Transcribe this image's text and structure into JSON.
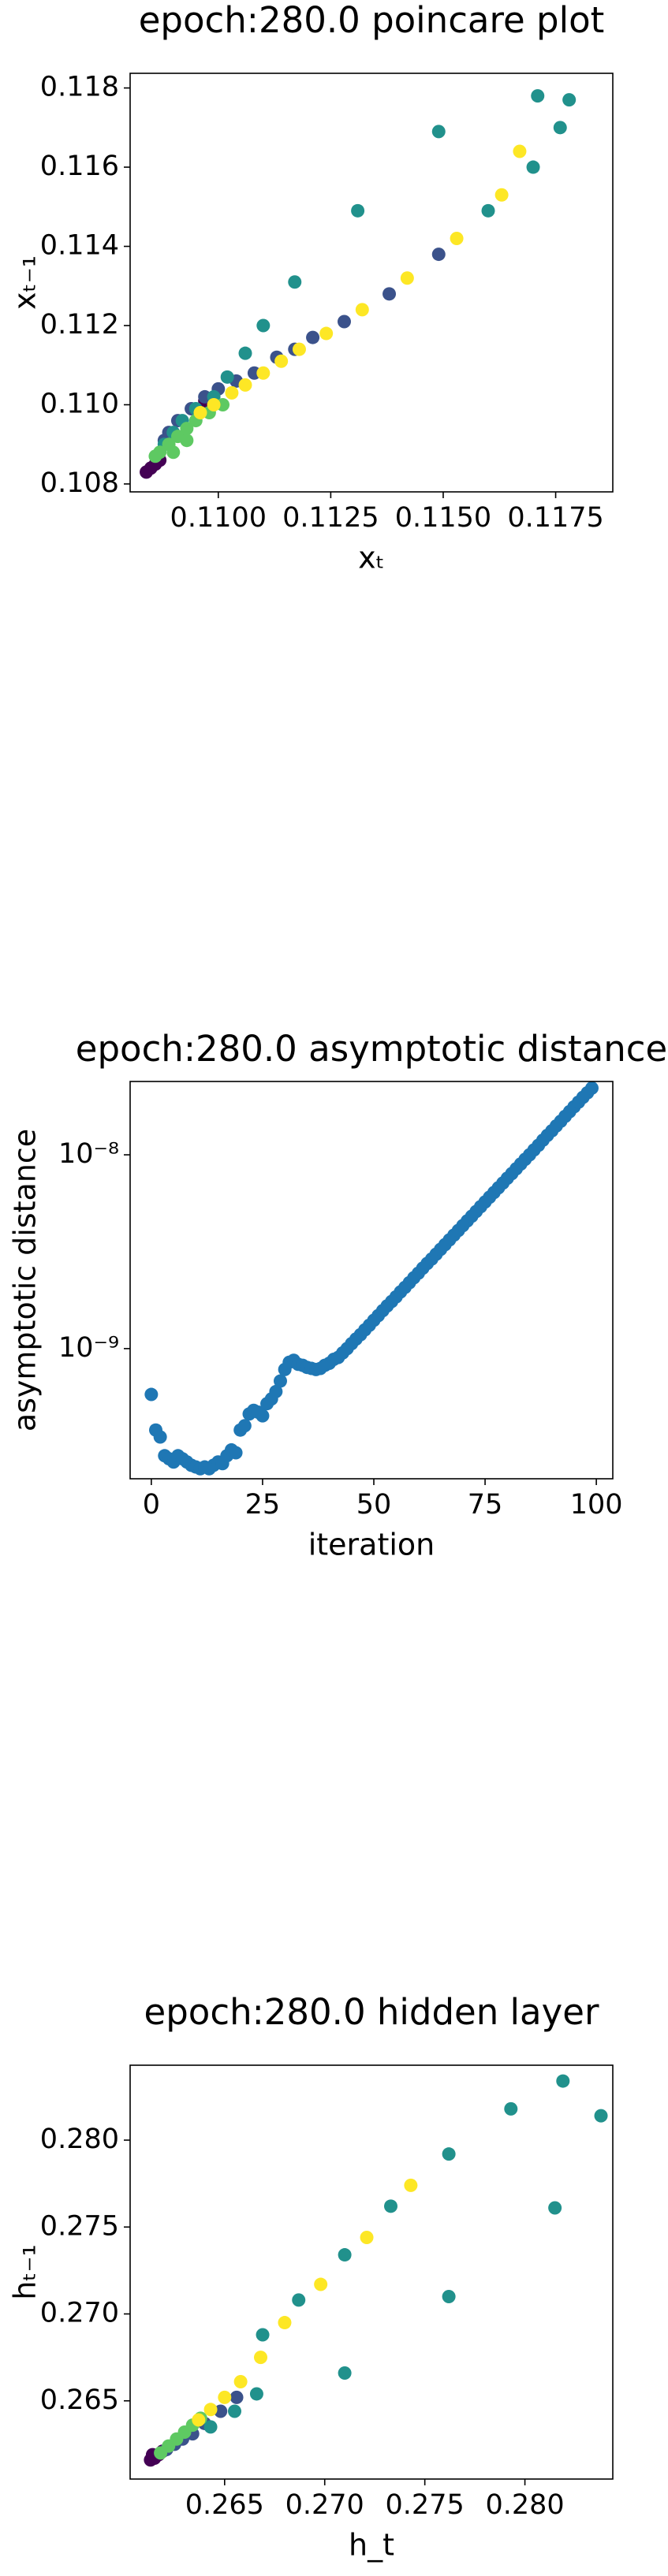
{
  "chart_data": [
    {
      "type": "scatter",
      "title": "epoch:280.0 poincare plot",
      "xlabel": "xₜ",
      "ylabel": "xₜ₋₁",
      "xlim": [
        0.10804,
        0.11877
      ],
      "ylim": [
        0.1078,
        0.11837
      ],
      "xticks": [
        {
          "value": 0.11,
          "label": "0.1100"
        },
        0.1125,
        {
          "value": 0.115,
          "label": "0.1150"
        },
        0.1175
      ],
      "yticks": [
        0.108,
        {
          "value": 0.11,
          "label": "0.110"
        },
        0.112,
        0.114,
        0.116,
        0.118
      ],
      "series": [
        {
          "color": "#440154",
          "x": [
            0.1085,
            0.1086,
            0.1084,
            0.1087,
            0.1097
          ],
          "values": [
            0.1084,
            0.1085,
            0.1083,
            0.1086,
            0.1101
          ]
        },
        {
          "color": "#3b528b",
          "x": [
            0.1149,
            0.1138,
            0.1128,
            0.1121,
            0.1117,
            0.1113,
            0.1108,
            0.1104,
            0.11,
            0.1097,
            0.1094,
            0.1091,
            0.1089,
            0.1088
          ],
          "values": [
            0.1138,
            0.1128,
            0.1121,
            0.1117,
            0.1114,
            0.1112,
            0.1108,
            0.1106,
            0.1104,
            0.1102,
            0.1099,
            0.1096,
            0.1093,
            0.1091
          ]
        },
        {
          "color": "#21918c",
          "x": [
            0.1171,
            0.1178,
            0.1176,
            0.117,
            0.116,
            0.1149,
            0.1131,
            0.1117,
            0.111,
            0.1106,
            0.1102,
            0.1099,
            0.1095,
            0.1092,
            0.109,
            0.1088
          ],
          "values": [
            0.1178,
            0.1177,
            0.117,
            0.116,
            0.1149,
            0.1169,
            0.1149,
            0.1131,
            0.112,
            0.1113,
            0.1107,
            0.1102,
            0.1099,
            0.1096,
            0.1093,
            0.109
          ]
        },
        {
          "color": "#5ec962",
          "x": [
            0.1101,
            0.1098,
            0.1095,
            0.1093,
            0.1091,
            0.1089,
            0.1087,
            0.1086,
            0.109,
            0.1093
          ],
          "values": [
            0.11,
            0.1098,
            0.1096,
            0.1094,
            0.1092,
            0.109,
            0.1088,
            0.1087,
            0.1088,
            0.1091
          ]
        },
        {
          "color": "#fde725",
          "x": [
            0.1167,
            0.1163,
            0.1153,
            0.1142,
            0.1132,
            0.1124,
            0.1118,
            0.1114,
            0.111,
            0.1106,
            0.1103,
            0.1099,
            0.1096
          ],
          "values": [
            0.1164,
            0.1153,
            0.1142,
            0.1132,
            0.1124,
            0.1118,
            0.1114,
            0.1111,
            0.1108,
            0.1105,
            0.1103,
            0.11,
            0.1098
          ]
        }
      ]
    },
    {
      "type": "scatter",
      "title": "epoch:280.0 asymptotic distance",
      "xlabel": "iteration",
      "ylabel": "asymptotic distance",
      "ylog": true,
      "xlim": [
        -4.76,
        103.7
      ],
      "ylim": [
        2.13e-10,
        2.39e-08
      ],
      "xticks": [
        0,
        25,
        50,
        75,
        100
      ],
      "yticks": [
        {
          "value": 1e-09,
          "label": "10⁻⁹"
        },
        {
          "value": 1e-08,
          "label": "10⁻⁸"
        }
      ],
      "series": [
        {
          "color": "#1f77b4",
          "x": [
            0,
            1,
            2,
            3,
            4,
            5,
            6,
            7,
            8,
            9,
            10,
            11,
            12,
            13,
            14,
            15,
            16,
            17,
            18,
            19,
            20,
            21,
            22,
            23,
            24,
            25,
            26,
            27,
            28,
            29,
            30,
            31,
            32,
            33,
            34,
            35,
            36,
            37,
            38,
            39,
            40,
            41,
            42,
            43,
            44,
            45,
            46,
            47,
            48,
            49,
            50,
            51,
            52,
            53,
            54,
            55,
            56,
            57,
            58,
            59,
            60,
            61,
            62,
            63,
            64,
            65,
            66,
            67,
            68,
            69,
            70,
            71,
            72,
            73,
            74,
            75,
            76,
            77,
            78,
            79,
            80,
            81,
            82,
            83,
            84,
            85,
            86,
            87,
            88,
            89,
            90,
            91,
            92,
            93,
            94,
            95,
            96,
            97,
            98,
            99
          ],
          "values": [
            5.8e-10,
            3.8e-10,
            3.5e-10,
            2.8e-10,
            2.7e-10,
            2.6e-10,
            2.8e-10,
            2.7e-10,
            2.6e-10,
            2.5e-10,
            2.45e-10,
            2.4e-10,
            2.45e-10,
            2.4e-10,
            2.5e-10,
            2.6e-10,
            2.55e-10,
            2.8e-10,
            3e-10,
            2.9e-10,
            3.8e-10,
            4e-10,
            4.6e-10,
            4.8e-10,
            4.7e-10,
            4.5e-10,
            5.2e-10,
            5.5e-10,
            6e-10,
            6.8e-10,
            7.8e-10,
            8.5e-10,
            8.7e-10,
            8.3e-10,
            8.2e-10,
            8e-10,
            7.9e-10,
            7.8e-10,
            7.9e-10,
            8.2e-10,
            8.4e-10,
            8.8e-10,
            9e-10,
            9.5e-10,
            1e-09,
            1.06e-09,
            1.12e-09,
            1.18e-09,
            1.25e-09,
            1.32e-09,
            1.4e-09,
            1.48e-09,
            1.57e-09,
            1.66e-09,
            1.75e-09,
            1.85e-09,
            1.96e-09,
            2.07e-09,
            2.19e-09,
            2.32e-09,
            2.45e-09,
            2.6e-09,
            2.75e-09,
            2.9e-09,
            3.07e-09,
            3.25e-09,
            3.44e-09,
            3.64e-09,
            3.85e-09,
            4.07e-09,
            4.31e-09,
            4.56e-09,
            4.82e-09,
            5.1e-09,
            5.4e-09,
            5.71e-09,
            6.04e-09,
            6.39e-09,
            6.76e-09,
            7.15e-09,
            7.57e-09,
            8e-09,
            8.47e-09,
            8.96e-09,
            9.48e-09,
            1e-08,
            1.06e-08,
            1.12e-08,
            1.19e-08,
            1.26e-08,
            1.33e-08,
            1.41e-08,
            1.49e-08,
            1.58e-08,
            1.67e-08,
            1.77e-08,
            1.87e-08,
            1.98e-08,
            2.09e-08,
            2.21e-08
          ]
        }
      ]
    },
    {
      "type": "scatter",
      "title": "epoch:280.0 hidden layer",
      "xlabel": "h_t",
      "ylabel": "hₜ₋₁",
      "xlim": [
        0.26028,
        0.28439
      ],
      "ylim": [
        0.2605,
        0.28431
      ],
      "xticks": [
        0.265,
        {
          "value": 0.27,
          "label": "0.270"
        },
        0.275,
        {
          "value": 0.28,
          "label": "0.280"
        }
      ],
      "yticks": [
        0.265,
        {
          "value": 0.27,
          "label": "0.270"
        },
        0.275,
        {
          "value": 0.28,
          "label": "0.280"
        }
      ],
      "series": [
        {
          "color": "#440154",
          "x": [
            0.2615,
            0.2617,
            0.2613,
            0.2619,
            0.2614
          ],
          "values": [
            0.2617,
            0.2619,
            0.2616,
            0.2621,
            0.2619
          ]
        },
        {
          "color": "#3b528b",
          "x": [
            0.2621,
            0.2625,
            0.2629,
            0.2634,
            0.264,
            0.2648,
            0.2656
          ],
          "values": [
            0.2622,
            0.2625,
            0.2628,
            0.2631,
            0.2637,
            0.2644,
            0.2652
          ]
        },
        {
          "color": "#21918c",
          "x": [
            0.2819,
            0.2838,
            0.2793,
            0.2815,
            0.2762,
            0.2762,
            0.2733,
            0.271,
            0.271,
            0.2687,
            0.2669,
            0.2666,
            0.2655,
            0.2643
          ],
          "values": [
            0.2834,
            0.2814,
            0.2818,
            0.2761,
            0.2792,
            0.271,
            0.2762,
            0.2734,
            0.2666,
            0.2708,
            0.2688,
            0.2654,
            0.2644,
            0.2635
          ]
        },
        {
          "color": "#5ec962",
          "x": [
            0.2618,
            0.2622,
            0.2626,
            0.263,
            0.2634,
            0.2638
          ],
          "values": [
            0.262,
            0.2624,
            0.2628,
            0.2632,
            0.2636,
            0.264
          ]
        },
        {
          "color": "#fde725",
          "x": [
            0.2743,
            0.2721,
            0.2698,
            0.268,
            0.2668,
            0.2658,
            0.265,
            0.2643,
            0.2637
          ],
          "values": [
            0.2774,
            0.2744,
            0.2717,
            0.2695,
            0.2675,
            0.2661,
            0.2652,
            0.2645,
            0.2639
          ]
        }
      ]
    }
  ]
}
